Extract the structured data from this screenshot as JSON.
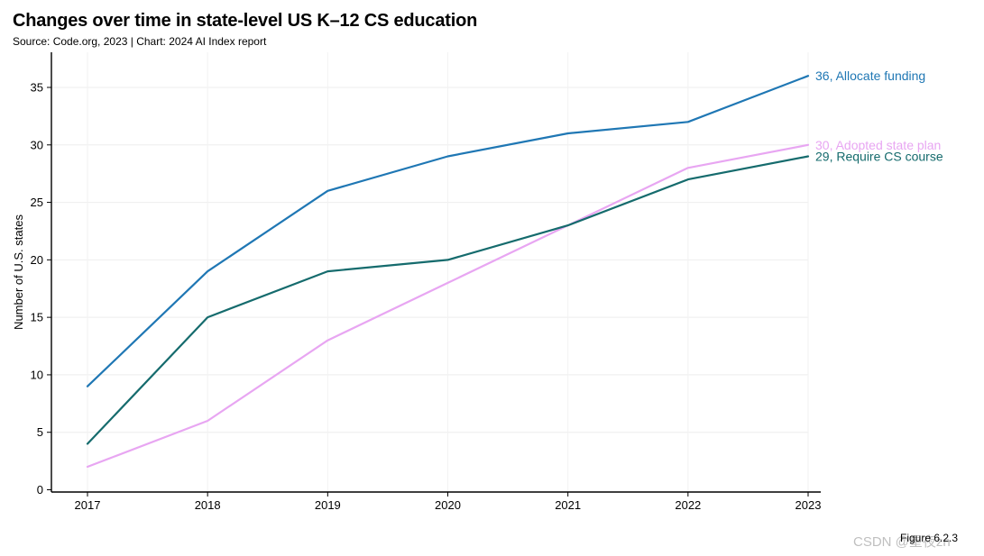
{
  "header": {
    "title": "Changes over time in state-level US K–12 CS education",
    "subtitle": "Source: Code.org, 2023 | Chart: 2024 AI Index report"
  },
  "footer": {
    "figure_label": "Figure 6.2.3",
    "watermark": "CSDN @星夜zn"
  },
  "chart_data": {
    "type": "line",
    "title": "Changes over time in state-level US K–12 CS education",
    "xlabel": "",
    "ylabel": "Number of U.S. states",
    "x": [
      "2017",
      "2018",
      "2019",
      "2020",
      "2021",
      "2022",
      "2023"
    ],
    "ylim": [
      0,
      38
    ],
    "yticks": [
      0,
      5,
      10,
      15,
      20,
      25,
      30,
      35
    ],
    "grid": true,
    "series": [
      {
        "name": "Allocate funding",
        "end_label": "36, Allocate funding",
        "color": "#1f77b4",
        "values": [
          9,
          19,
          26,
          29,
          31,
          32,
          36
        ]
      },
      {
        "name": "Adopted state plan",
        "end_label": "30, Adopted state plan",
        "color": "#e8a6f2",
        "values": [
          2,
          6,
          13,
          18,
          23,
          28,
          30
        ]
      },
      {
        "name": "Require CS course",
        "end_label": "29, Require CS course",
        "color": "#156b6d",
        "values": [
          4,
          15,
          19,
          20,
          23,
          27,
          29
        ]
      }
    ]
  }
}
